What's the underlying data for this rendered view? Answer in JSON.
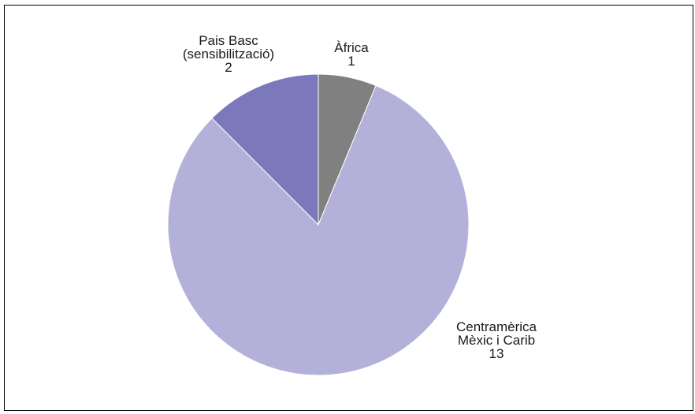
{
  "chart_data": {
    "type": "pie",
    "title": "",
    "start_angle_deg": 0,
    "direction": "clockwise",
    "slices": [
      {
        "label_lines": [
          "Àfrica",
          "1"
        ],
        "name": "Àfrica",
        "value": 1,
        "color": "#808080"
      },
      {
        "label_lines": [
          "Centramèrica",
          "Mèxic i Carib",
          "13"
        ],
        "name": "Centramèrica Mèxic i Carib",
        "value": 13,
        "color": "#b3b1d9"
      },
      {
        "label_lines": [
          "Pais Basc",
          "(sensibilització)",
          "2"
        ],
        "name": "Pais Basc (sensibilització)",
        "value": 2,
        "color": "#7b79bc"
      }
    ]
  }
}
